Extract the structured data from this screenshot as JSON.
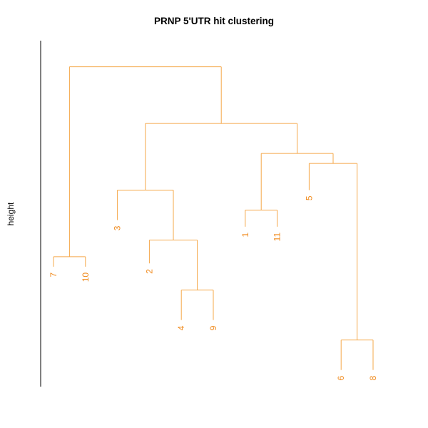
{
  "chart_data": {
    "type": "dendrogram",
    "title": "PRNP 5'UTR hit clustering",
    "xlabel": "",
    "ylabel": "height",
    "y_axis_ticks": "none",
    "line_color": "#F5A84A",
    "label_color": "#F08A1C",
    "axis_color": "#000000",
    "leaf_order": [
      "7",
      "10",
      "3",
      "2",
      "4",
      "9",
      "1",
      "11",
      "5",
      "6",
      "8"
    ],
    "leaves": [
      {
        "id": "A",
        "label": "7",
        "height": 0.36
      },
      {
        "id": "B",
        "label": "10",
        "height": 0.36
      },
      {
        "id": "C",
        "label": "3",
        "height": 0.5
      },
      {
        "id": "D",
        "label": "2",
        "height": 0.37
      },
      {
        "id": "E",
        "label": "4",
        "height": 0.2
      },
      {
        "id": "F",
        "label": "9",
        "height": 0.2
      },
      {
        "id": "G",
        "label": "1",
        "height": 0.48
      },
      {
        "id": "H",
        "label": "11",
        "height": 0.48
      },
      {
        "id": "I",
        "label": "5",
        "height": 0.59
      },
      {
        "id": "J",
        "label": "6",
        "height": 0.05
      },
      {
        "id": "K",
        "label": "8",
        "height": 0.05
      }
    ],
    "merges": [
      {
        "id": "m1",
        "left": "E",
        "right": "F",
        "height": 0.29
      },
      {
        "id": "m2",
        "left": "D",
        "right": "m1",
        "height": 0.44
      },
      {
        "id": "m3",
        "left": "C",
        "right": "m2",
        "height": 0.59
      },
      {
        "id": "m4",
        "left": "G",
        "right": "H",
        "height": 0.53
      },
      {
        "id": "m5",
        "left": "J",
        "right": "K",
        "height": 0.14
      },
      {
        "id": "m6",
        "left": "I",
        "right": "m5",
        "height": 0.67
      },
      {
        "id": "m7",
        "left": "m4",
        "right": "m6",
        "height": 0.7
      },
      {
        "id": "m8",
        "left": "m3",
        "right": "m7",
        "height": 0.79
      },
      {
        "id": "m9",
        "left": "A",
        "right": "B",
        "height": 0.39
      },
      {
        "id": "m10",
        "left": "m9",
        "right": "m8",
        "height": 0.96
      }
    ],
    "height_range": [
      0,
      1
    ]
  }
}
